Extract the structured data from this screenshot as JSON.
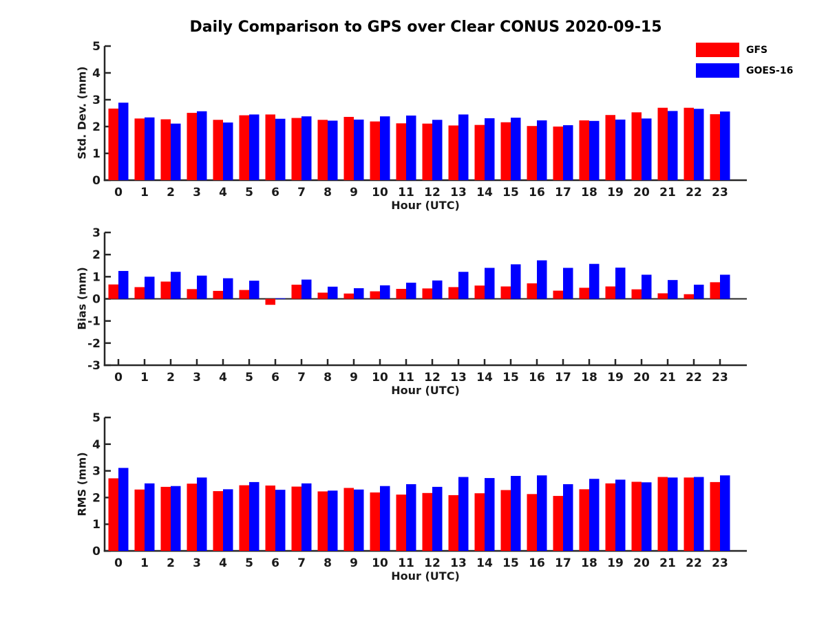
{
  "title": "Daily Comparison to GPS over Clear CONUS 2020-09-15",
  "legend": [
    {
      "label": "GFS",
      "color": "#ff0000"
    },
    {
      "label": "GOES-16",
      "color": "#0000ff"
    }
  ],
  "colors": {
    "axis": "#262626",
    "text": "#1a1a1a",
    "gfs": "#ff0000",
    "goes16": "#0000ff"
  },
  "chart_data": {
    "type": "bar",
    "categories": [
      "0",
      "1",
      "2",
      "3",
      "4",
      "5",
      "6",
      "7",
      "8",
      "9",
      "10",
      "11",
      "12",
      "13",
      "14",
      "15",
      "16",
      "17",
      "18",
      "19",
      "20",
      "21",
      "22",
      "23"
    ],
    "xlabel": "Hour (UTC)",
    "grid": false,
    "legend_position": "top-right",
    "panels": [
      {
        "ylabel": "Std. Dev. (mm)",
        "ylim": [
          0,
          5
        ],
        "yticks": [
          0,
          1,
          2,
          3,
          4,
          5
        ],
        "series": [
          {
            "name": "GFS",
            "color": "#ff0000",
            "values": [
              2.67,
              2.3,
              2.27,
              2.51,
              2.25,
              2.42,
              2.45,
              2.32,
              2.25,
              2.36,
              2.19,
              2.12,
              2.11,
              2.04,
              2.06,
              2.16,
              2.02,
              2.0,
              2.23,
              2.43,
              2.53,
              2.7,
              2.7,
              2.46
            ]
          },
          {
            "name": "GOES-16",
            "color": "#0000ff",
            "values": [
              2.89,
              2.34,
              2.11,
              2.57,
              2.15,
              2.45,
              2.29,
              2.38,
              2.22,
              2.26,
              2.38,
              2.41,
              2.25,
              2.45,
              2.31,
              2.33,
              2.23,
              2.05,
              2.21,
              2.26,
              2.3,
              2.58,
              2.66,
              2.56
            ]
          }
        ]
      },
      {
        "ylabel": "Bias (mm)",
        "ylim": [
          -3,
          3
        ],
        "yticks": [
          -3,
          -2,
          -1,
          0,
          1,
          2,
          3
        ],
        "series": [
          {
            "name": "GFS",
            "color": "#ff0000",
            "values": [
              0.65,
              0.53,
              0.78,
              0.44,
              0.36,
              0.4,
              -0.27,
              0.64,
              0.28,
              0.24,
              0.34,
              0.45,
              0.47,
              0.53,
              0.6,
              0.56,
              0.7,
              0.37,
              0.5,
              0.56,
              0.43,
              0.25,
              0.21,
              0.75
            ]
          },
          {
            "name": "GOES-16",
            "color": "#0000ff",
            "values": [
              1.26,
              1.0,
              1.22,
              1.05,
              0.93,
              0.82,
              0.03,
              0.87,
              0.55,
              0.48,
              0.61,
              0.73,
              0.83,
              1.22,
              1.4,
              1.56,
              1.74,
              1.4,
              1.58,
              1.41,
              1.09,
              0.85,
              0.64,
              1.09
            ]
          }
        ]
      },
      {
        "ylabel": "RMS (mm)",
        "ylim": [
          0,
          5
        ],
        "yticks": [
          0,
          1,
          2,
          3,
          4,
          5
        ],
        "series": [
          {
            "name": "GFS",
            "color": "#ff0000",
            "values": [
              2.72,
              2.3,
              2.4,
              2.52,
              2.24,
              2.46,
              2.45,
              2.41,
              2.23,
              2.36,
              2.19,
              2.11,
              2.17,
              2.09,
              2.16,
              2.28,
              2.13,
              2.06,
              2.31,
              2.53,
              2.59,
              2.77,
              2.75,
              2.58
            ]
          },
          {
            "name": "GOES-16",
            "color": "#0000ff",
            "values": [
              3.11,
              2.53,
              2.43,
              2.75,
              2.31,
              2.58,
              2.29,
              2.53,
              2.26,
              2.3,
              2.43,
              2.5,
              2.4,
              2.77,
              2.73,
              2.81,
              2.83,
              2.5,
              2.7,
              2.67,
              2.57,
              2.75,
              2.77,
              2.83
            ]
          }
        ]
      }
    ]
  }
}
